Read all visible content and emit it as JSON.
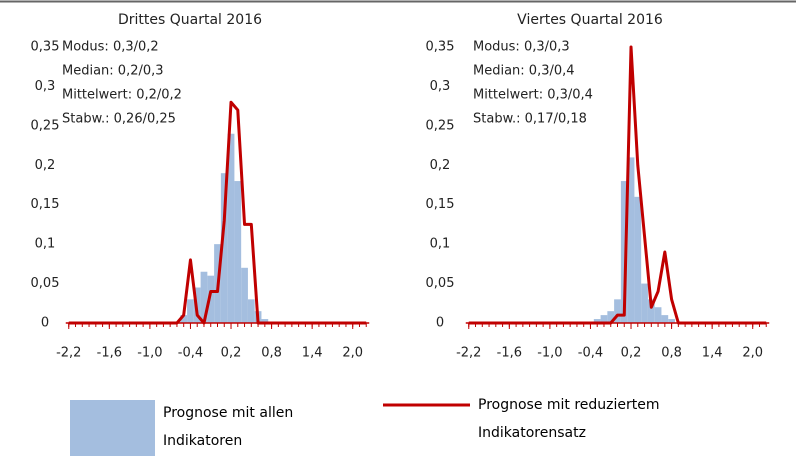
{
  "chart_data": [
    {
      "type": "combo",
      "title": "Drittes Quartal 2016",
      "annotations": [
        "Modus: 0,3/0,2",
        "Median: 0,2/0,3",
        "Mittelwert: 0,2/0,2",
        "Stabw.: 0,26/0,25"
      ],
      "x": [
        -2.2,
        -2.1,
        -2.0,
        -1.9,
        -1.8,
        -1.7,
        -1.6,
        -1.5,
        -1.4,
        -1.3,
        -1.2,
        -1.1,
        -1.0,
        -0.9,
        -0.8,
        -0.7,
        -0.6,
        -0.5,
        -0.4,
        -0.3,
        -0.2,
        -0.1,
        0.0,
        0.1,
        0.2,
        0.3,
        0.4,
        0.5,
        0.6,
        0.7,
        0.8,
        0.9,
        1.0,
        1.1,
        1.2,
        1.3,
        1.4,
        1.5,
        1.6,
        1.7,
        1.8,
        1.9,
        2.0,
        2.1,
        2.2
      ],
      "series": [
        {
          "name": "Prognose mit allen Indikatoren",
          "type": "bar",
          "color": "#a4bedf",
          "values": [
            0,
            0,
            0,
            0,
            0,
            0,
            0,
            0,
            0,
            0,
            0,
            0,
            0,
            0,
            0,
            0,
            0,
            0.01,
            0.03,
            0.045,
            0.065,
            0.06,
            0.1,
            0.19,
            0.24,
            0.18,
            0.07,
            0.03,
            0.015,
            0.005,
            0,
            0,
            0,
            0,
            0,
            0,
            0,
            0,
            0,
            0,
            0,
            0,
            0,
            0,
            0
          ]
        },
        {
          "name": "Prognose mit reduziertem Indikatorensatz",
          "type": "line",
          "color": "#c00000",
          "values": [
            0,
            0,
            0,
            0,
            0,
            0,
            0,
            0,
            0,
            0,
            0,
            0,
            0,
            0,
            0,
            0,
            0,
            0.01,
            0.08,
            0.01,
            0,
            0.04,
            0.04,
            0.13,
            0.28,
            0.27,
            0.125,
            0.125,
            0,
            0,
            0,
            0,
            0,
            0,
            0,
            0,
            0,
            0,
            0,
            0,
            0,
            0,
            0,
            0,
            0
          ]
        }
      ],
      "xlim": [
        -2.3,
        2.3
      ],
      "xticks": [
        {
          "value": -2.2,
          "label": "-2,2"
        },
        {
          "value": -1.6,
          "label": "-1,6"
        },
        {
          "value": -1.0,
          "label": "-1,0"
        },
        {
          "value": -0.4,
          "label": "-0,4"
        },
        {
          "value": 0.2,
          "label": "0,2"
        },
        {
          "value": 0.8,
          "label": "0,8"
        },
        {
          "value": 1.4,
          "label": "1,4"
        },
        {
          "value": 2.0,
          "label": "2,0"
        }
      ],
      "ylim": [
        0,
        0.35
      ],
      "yticks": [
        0,
        {
          "value": 0.05,
          "label": "0,05"
        },
        {
          "value": 0.1,
          "label": "0,1"
        },
        {
          "value": 0.15,
          "label": "0,15"
        },
        {
          "value": 0.2,
          "label": "0,2"
        },
        {
          "value": 0.25,
          "label": "0,25"
        },
        {
          "value": 0.3,
          "label": "0,3"
        },
        {
          "value": 0.35,
          "label": "0,35"
        }
      ]
    },
    {
      "type": "combo",
      "title": "Viertes Quartal 2016",
      "annotations": [
        "Modus: 0,3/0,3",
        "Median: 0,3/0,4",
        "Mittelwert: 0,3/0,4",
        "Stabw.: 0,17/0,18"
      ],
      "x": [
        -2.2,
        -2.1,
        -2.0,
        -1.9,
        -1.8,
        -1.7,
        -1.6,
        -1.5,
        -1.4,
        -1.3,
        -1.2,
        -1.1,
        -1.0,
        -0.9,
        -0.8,
        -0.7,
        -0.6,
        -0.5,
        -0.4,
        -0.3,
        -0.2,
        -0.1,
        0.0,
        0.1,
        0.2,
        0.3,
        0.4,
        0.5,
        0.6,
        0.7,
        0.8,
        0.9,
        1.0,
        1.1,
        1.2,
        1.3,
        1.4,
        1.5,
        1.6,
        1.7,
        1.8,
        1.9,
        2.0,
        2.1,
        2.2
      ],
      "series": [
        {
          "type": "bar",
          "color": "#a4bedf",
          "values": [
            0,
            0,
            0,
            0,
            0,
            0,
            0,
            0,
            0,
            0,
            0,
            0,
            0,
            0,
            0,
            0,
            0,
            0,
            0,
            0.005,
            0.01,
            0.015,
            0.03,
            0.18,
            0.21,
            0.16,
            0.05,
            0.03,
            0.02,
            0.01,
            0.005,
            0,
            0,
            0,
            0,
            0,
            0,
            0,
            0,
            0,
            0,
            0,
            0,
            0,
            0
          ]
        },
        {
          "type": "line",
          "color": "#c00000",
          "values": [
            0,
            0,
            0,
            0,
            0,
            0,
            0,
            0,
            0,
            0,
            0,
            0,
            0,
            0,
            0,
            0,
            0,
            0,
            0,
            0,
            0,
            0,
            0.01,
            0.01,
            0.35,
            0.2,
            0.11,
            0.02,
            0.04,
            0.09,
            0.03,
            0,
            0,
            0,
            0,
            0,
            0,
            0,
            0,
            0,
            0,
            0,
            0,
            0,
            0
          ]
        }
      ],
      "xlim": [
        -2.3,
        2.3
      ],
      "xticks": [
        {
          "value": -2.2,
          "label": "-2,2"
        },
        {
          "value": -1.6,
          "label": "-1,6"
        },
        {
          "value": -1.0,
          "label": "-1,0"
        },
        {
          "value": -0.4,
          "label": "-0,4"
        },
        {
          "value": 0.2,
          "label": "0,2"
        },
        {
          "value": 0.8,
          "label": "0,8"
        },
        {
          "value": 1.4,
          "label": "1,4"
        },
        {
          "value": 2.0,
          "label": "2,0"
        }
      ],
      "ylim": [
        0,
        0.35
      ],
      "yticks": [
        0,
        {
          "value": 0.05,
          "label": "0,05"
        },
        {
          "value": 0.1,
          "label": "0,1"
        },
        {
          "value": 0.15,
          "label": "0,15"
        },
        {
          "value": 0.2,
          "label": "0,2"
        },
        {
          "value": 0.25,
          "label": "0,25"
        },
        {
          "value": 0.3,
          "label": "0,3"
        },
        {
          "value": 0.35,
          "label": "0,35"
        }
      ]
    }
  ]
}
